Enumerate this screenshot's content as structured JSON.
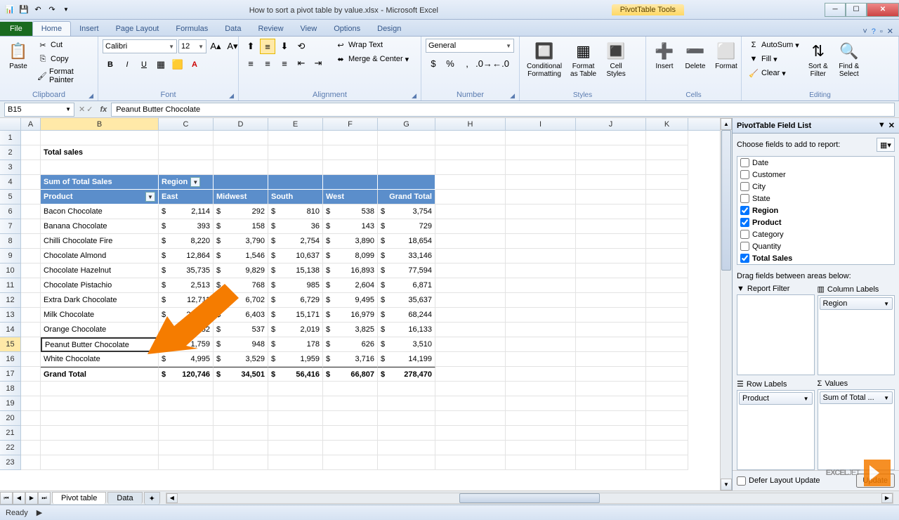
{
  "app": {
    "filename": "How to sort a pivot table by value.xlsx",
    "appname": "Microsoft Excel",
    "context_tool": "PivotTable Tools"
  },
  "tabs": {
    "file": "File",
    "list": [
      "Home",
      "Insert",
      "Page Layout",
      "Formulas",
      "Data",
      "Review",
      "View",
      "Options",
      "Design"
    ],
    "active_index": 0
  },
  "ribbon": {
    "clipboard": {
      "label": "Clipboard",
      "paste": "Paste",
      "cut": "Cut",
      "copy": "Copy",
      "format_painter": "Format Painter"
    },
    "font": {
      "label": "Font",
      "name": "Calibri",
      "size": "12"
    },
    "alignment": {
      "label": "Alignment",
      "wrap": "Wrap Text",
      "merge": "Merge & Center"
    },
    "number": {
      "label": "Number",
      "format": "General"
    },
    "styles": {
      "label": "Styles",
      "cond": "Conditional\nFormatting",
      "table": "Format\nas Table",
      "cell": "Cell\nStyles"
    },
    "cells": {
      "label": "Cells",
      "insert": "Insert",
      "delete": "Delete",
      "format": "Format"
    },
    "editing": {
      "label": "Editing",
      "autosum": "AutoSum",
      "fill": "Fill",
      "clear": "Clear",
      "sort": "Sort &\nFilter",
      "find": "Find &\nSelect"
    }
  },
  "namebox": "B15",
  "formula": "Peanut Butter Chocolate",
  "columns": [
    "A",
    "B",
    "C",
    "D",
    "E",
    "F",
    "G",
    "H",
    "I",
    "J",
    "K"
  ],
  "sheet": {
    "title": "Total sales",
    "pivot": {
      "measure": "Sum of Total Sales",
      "col_field": "Region",
      "row_field": "Product",
      "regions": [
        "East",
        "Midwest",
        "South",
        "West",
        "Grand Total"
      ],
      "rows": [
        {
          "label": "Bacon Chocolate",
          "vals": [
            "2,114",
            "292",
            "810",
            "538",
            "3,754"
          ]
        },
        {
          "label": "Banana Chocolate",
          "vals": [
            "393",
            "158",
            "36",
            "143",
            "729"
          ]
        },
        {
          "label": "Chilli Chocolate Fire",
          "vals": [
            "8,220",
            "3,790",
            "2,754",
            "3,890",
            "18,654"
          ]
        },
        {
          "label": "Chocolate Almond",
          "vals": [
            "12,864",
            "1,546",
            "10,637",
            "8,099",
            "33,146"
          ]
        },
        {
          "label": "Chocolate Hazelnut",
          "vals": [
            "35,735",
            "9,829",
            "15,138",
            "16,893",
            "77,594"
          ]
        },
        {
          "label": "Chocolate Pistachio",
          "vals": [
            "2,513",
            "768",
            "985",
            "2,604",
            "6,871"
          ]
        },
        {
          "label": "Extra Dark Chocolate",
          "vals": [
            "12,711",
            "6,702",
            "6,729",
            "9,495",
            "35,637"
          ]
        },
        {
          "label": "Milk Chocolate",
          "vals": [
            "29,691",
            "6,403",
            "15,171",
            "16,979",
            "68,244"
          ]
        },
        {
          "label": "Orange Chocolate",
          "vals": [
            "9,752",
            "537",
            "2,019",
            "3,825",
            "16,133"
          ]
        },
        {
          "label": "Peanut Butter Chocolate",
          "vals": [
            "1,759",
            "948",
            "178",
            "626",
            "3,510"
          ]
        },
        {
          "label": "White Chocolate",
          "vals": [
            "4,995",
            "3,529",
            "1,959",
            "3,716",
            "14,199"
          ]
        }
      ],
      "grand_total": {
        "label": "Grand Total",
        "vals": [
          "120,746",
          "34,501",
          "56,416",
          "66,807",
          "278,470"
        ]
      }
    },
    "selected_row": 15,
    "selected_col": "B"
  },
  "field_list": {
    "title": "PivotTable Field List",
    "instruction": "Choose fields to add to report:",
    "fields": [
      {
        "name": "Date",
        "on": false
      },
      {
        "name": "Customer",
        "on": false
      },
      {
        "name": "City",
        "on": false
      },
      {
        "name": "State",
        "on": false
      },
      {
        "name": "Region",
        "on": true
      },
      {
        "name": "Product",
        "on": true
      },
      {
        "name": "Category",
        "on": false
      },
      {
        "name": "Quantity",
        "on": false
      },
      {
        "name": "Total Sales",
        "on": true
      }
    ],
    "drag_label": "Drag fields between areas below:",
    "areas": {
      "report_filter": {
        "label": "Report Filter",
        "items": []
      },
      "column_labels": {
        "label": "Column Labels",
        "items": [
          "Region"
        ]
      },
      "row_labels": {
        "label": "Row Labels",
        "items": [
          "Product"
        ]
      },
      "values": {
        "label": "Values",
        "items": [
          "Sum of Total ..."
        ]
      }
    },
    "defer": "Defer Layout Update",
    "update": "Update"
  },
  "sheet_tabs": {
    "active": "Pivot table",
    "others": [
      "Data"
    ]
  },
  "status": "Ready",
  "watermark": "EXCELJET",
  "colors": {
    "pivot_header": "#5b8ecb",
    "arrow": "#f57c00",
    "row_sel": "#ffe9a8"
  }
}
